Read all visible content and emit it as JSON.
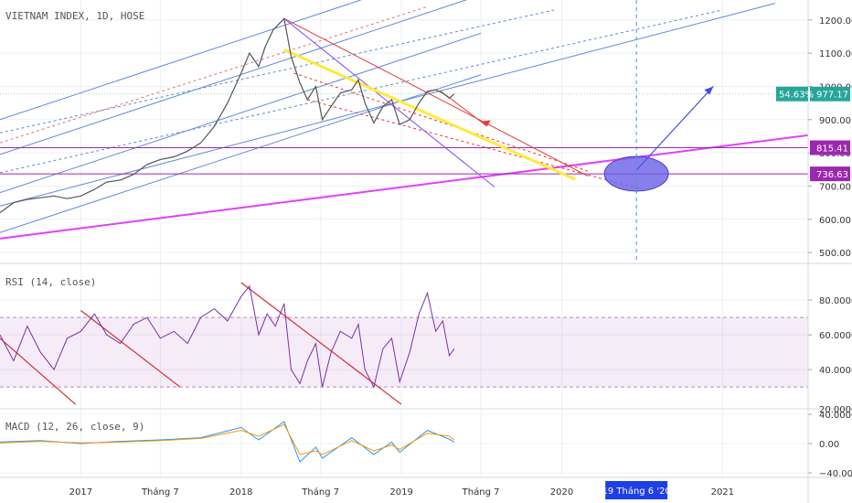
{
  "chart_data": [
    {
      "type": "line",
      "pane": "price",
      "title": "VIETNAM INDEX, 1D, HOSE",
      "y_ticks": [
        500,
        600,
        700,
        800,
        900,
        1000,
        1100,
        1200
      ],
      "y_tick_labels": [
        "500.00",
        "600.00",
        "700.00",
        "800.00",
        "900.00",
        "1000.00",
        "1100.00",
        "1200.00"
      ],
      "ylim": [
        470,
        1260
      ],
      "x_ticks": [
        {
          "date": "2017-01-01",
          "label": "2017"
        },
        {
          "date": "2017-07-01",
          "label": "Tháng 7"
        },
        {
          "date": "2018-01-01",
          "label": "2018"
        },
        {
          "date": "2018-07-01",
          "label": "Tháng 7"
        },
        {
          "date": "2019-01-01",
          "label": "2019"
        },
        {
          "date": "2019-07-01",
          "label": "Tháng 7"
        },
        {
          "date": "2020-01-01",
          "label": "2020"
        },
        {
          "date": "2021-01-01",
          "label": "2021"
        }
      ],
      "xlim": [
        "2016-07-01",
        "2021-07-15"
      ],
      "cursor": {
        "date": "2020-06-19",
        "label": "19 Tháng 6 '20"
      },
      "series": [
        {
          "color": "#555555",
          "points": [
            [
              "2016-07-01",
              620
            ],
            [
              "2016-08-01",
              650
            ],
            [
              "2016-09-01",
              660
            ],
            [
              "2016-10-01",
              665
            ],
            [
              "2016-11-01",
              670
            ],
            [
              "2016-12-01",
              662
            ],
            [
              "2017-01-01",
              670
            ],
            [
              "2017-02-01",
              690
            ],
            [
              "2017-03-01",
              712
            ],
            [
              "2017-04-01",
              718
            ],
            [
              "2017-05-01",
              735
            ],
            [
              "2017-06-01",
              765
            ],
            [
              "2017-07-01",
              780
            ],
            [
              "2017-08-01",
              788
            ],
            [
              "2017-09-01",
              805
            ],
            [
              "2017-10-01",
              830
            ],
            [
              "2017-11-01",
              880
            ],
            [
              "2017-12-01",
              950
            ],
            [
              "2018-01-01",
              1040
            ],
            [
              "2018-01-20",
              1100
            ],
            [
              "2018-02-10",
              1060
            ],
            [
              "2018-02-25",
              1120
            ],
            [
              "2018-03-15",
              1170
            ],
            [
              "2018-04-09",
              1204
            ],
            [
              "2018-04-25",
              1090
            ],
            [
              "2018-05-15",
              1010
            ],
            [
              "2018-06-01",
              960
            ],
            [
              "2018-06-20",
              1000
            ],
            [
              "2018-07-05",
              900
            ],
            [
              "2018-07-25",
              940
            ],
            [
              "2018-08-15",
              980
            ],
            [
              "2018-09-10",
              990
            ],
            [
              "2018-09-25",
              1020
            ],
            [
              "2018-10-10",
              950
            ],
            [
              "2018-10-30",
              890
            ],
            [
              "2018-11-20",
              940
            ],
            [
              "2018-12-10",
              960
            ],
            [
              "2018-12-28",
              885
            ],
            [
              "2019-01-20",
              900
            ],
            [
              "2019-02-10",
              950
            ],
            [
              "2019-03-01",
              985
            ],
            [
              "2019-03-20",
              990
            ],
            [
              "2019-04-05",
              980
            ],
            [
              "2019-04-20",
              965
            ],
            [
              "2019-05-01",
              977
            ]
          ]
        }
      ],
      "horizontal_levels": [
        {
          "value": 815.41,
          "label": "815.41",
          "color": "#9c27b0"
        },
        {
          "value": 736.63,
          "label": "736.63",
          "color": "#9c27b0"
        },
        {
          "value": 977.17,
          "label": "977.17",
          "color": "#26a69a"
        }
      ],
      "last_value_change": "54.63%",
      "ellipse_target": {
        "date": "2020-06-19",
        "value": 737
      }
    },
    {
      "type": "line",
      "pane": "rsi",
      "title": "RSI (14, close)",
      "y_ticks": [
        40,
        60,
        80
      ],
      "y_tick_labels": [
        "40.0000",
        "60.0000",
        "80.0000"
      ],
      "bottom_tick_label": "20.0000",
      "ylim": [
        18,
        100
      ],
      "band": [
        30,
        70
      ],
      "series": [
        {
          "color": "#7b2fa6",
          "points": [
            [
              "2016-07-01",
              60
            ],
            [
              "2016-08-01",
              45
            ],
            [
              "2016-09-01",
              65
            ],
            [
              "2016-10-01",
              50
            ],
            [
              "2016-11-01",
              40
            ],
            [
              "2016-12-01",
              58
            ],
            [
              "2017-01-01",
              62
            ],
            [
              "2017-02-01",
              72
            ],
            [
              "2017-03-01",
              60
            ],
            [
              "2017-04-01",
              55
            ],
            [
              "2017-05-01",
              66
            ],
            [
              "2017-06-01",
              70
            ],
            [
              "2017-07-01",
              58
            ],
            [
              "2017-08-01",
              62
            ],
            [
              "2017-09-01",
              55
            ],
            [
              "2017-10-01",
              70
            ],
            [
              "2017-11-01",
              75
            ],
            [
              "2017-12-01",
              68
            ],
            [
              "2018-01-01",
              82
            ],
            [
              "2018-01-20",
              88
            ],
            [
              "2018-02-10",
              60
            ],
            [
              "2018-03-01",
              72
            ],
            [
              "2018-03-20",
              65
            ],
            [
              "2018-04-09",
              78
            ],
            [
              "2018-04-25",
              40
            ],
            [
              "2018-05-15",
              32
            ],
            [
              "2018-06-01",
              45
            ],
            [
              "2018-06-20",
              55
            ],
            [
              "2018-07-05",
              30
            ],
            [
              "2018-07-25",
              50
            ],
            [
              "2018-08-15",
              62
            ],
            [
              "2018-09-10",
              58
            ],
            [
              "2018-09-25",
              66
            ],
            [
              "2018-10-10",
              40
            ],
            [
              "2018-10-30",
              30
            ],
            [
              "2018-11-20",
              52
            ],
            [
              "2018-12-10",
              58
            ],
            [
              "2018-12-28",
              33
            ],
            [
              "2019-01-20",
              50
            ],
            [
              "2019-02-10",
              72
            ],
            [
              "2019-03-01",
              84
            ],
            [
              "2019-03-20",
              62
            ],
            [
              "2019-04-05",
              68
            ],
            [
              "2019-04-20",
              48
            ],
            [
              "2019-05-01",
              52
            ]
          ]
        }
      ]
    },
    {
      "type": "line",
      "pane": "macd",
      "title": "MACD (12, 26, close, 9)",
      "y_ticks": [
        40,
        0,
        -40
      ],
      "y_tick_labels": [
        "40.0000",
        "0.00",
        "−40.0000"
      ],
      "ylim": [
        -45,
        45
      ],
      "series": [
        {
          "color": "#2196f3",
          "points": [
            [
              "2016-07-01",
              2
            ],
            [
              "2016-10-01",
              4
            ],
            [
              "2017-01-01",
              0
            ],
            [
              "2017-04-01",
              3
            ],
            [
              "2017-07-01",
              5
            ],
            [
              "2017-10-01",
              8
            ],
            [
              "2018-01-01",
              22
            ],
            [
              "2018-02-10",
              5
            ],
            [
              "2018-04-09",
              30
            ],
            [
              "2018-05-15",
              -25
            ],
            [
              "2018-06-20",
              -5
            ],
            [
              "2018-07-05",
              -20
            ],
            [
              "2018-09-10",
              8
            ],
            [
              "2018-10-30",
              -15
            ],
            [
              "2018-12-10",
              2
            ],
            [
              "2018-12-28",
              -12
            ],
            [
              "2019-03-01",
              18
            ],
            [
              "2019-04-20",
              6
            ],
            [
              "2019-05-01",
              2
            ]
          ]
        },
        {
          "color": "#ff9800",
          "points": [
            [
              "2016-07-01",
              1
            ],
            [
              "2016-10-01",
              3
            ],
            [
              "2017-01-01",
              1
            ],
            [
              "2017-04-01",
              2
            ],
            [
              "2017-07-01",
              4
            ],
            [
              "2017-10-01",
              7
            ],
            [
              "2018-01-01",
              18
            ],
            [
              "2018-02-10",
              10
            ],
            [
              "2018-04-09",
              26
            ],
            [
              "2018-05-15",
              -15
            ],
            [
              "2018-06-20",
              -10
            ],
            [
              "2018-07-05",
              -15
            ],
            [
              "2018-09-10",
              4
            ],
            [
              "2018-10-30",
              -10
            ],
            [
              "2018-12-10",
              -2
            ],
            [
              "2018-12-28",
              -8
            ],
            [
              "2019-03-01",
              14
            ],
            [
              "2019-04-20",
              10
            ],
            [
              "2019-05-01",
              5
            ]
          ]
        }
      ]
    }
  ]
}
